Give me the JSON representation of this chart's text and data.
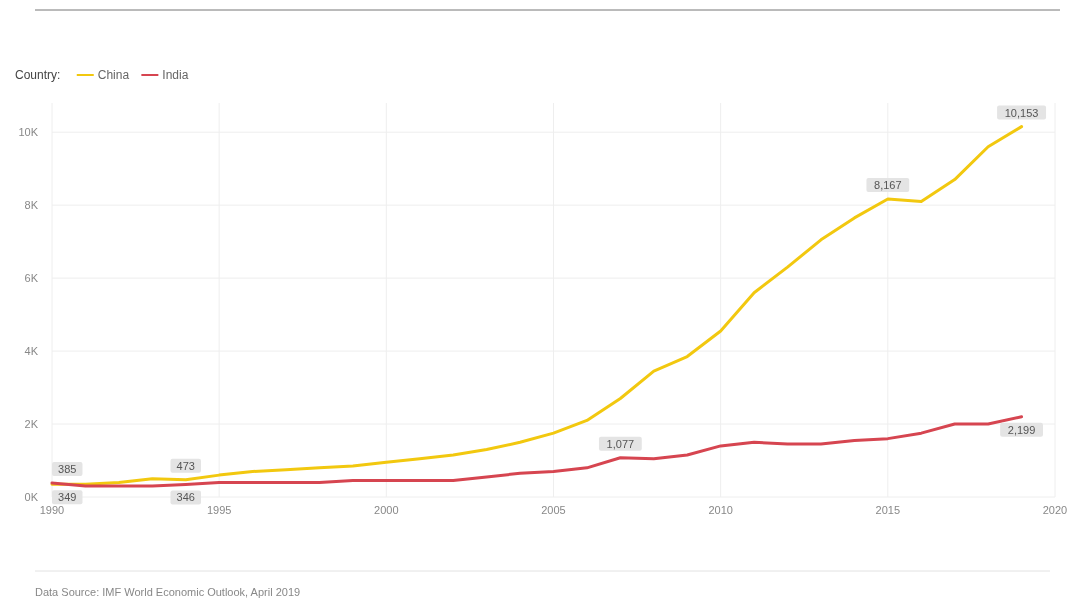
{
  "chart_data": {
    "type": "line",
    "title": null,
    "x": [
      1990,
      1991,
      1992,
      1993,
      1994,
      1995,
      1996,
      1997,
      1998,
      1999,
      2000,
      2001,
      2002,
      2003,
      2004,
      2005,
      2006,
      2007,
      2008,
      2009,
      2010,
      2011,
      2012,
      2013,
      2014,
      2015,
      2016,
      2017,
      2018,
      2019
    ],
    "xlim": [
      1990,
      2020
    ],
    "xticks": [
      1990,
      1995,
      2000,
      2005,
      2010,
      2015,
      2020
    ],
    "ylim": [
      0,
      10800
    ],
    "yticks": [
      {
        "value": 0,
        "label": "0K"
      },
      {
        "value": 2000,
        "label": "2K"
      },
      {
        "value": 4000,
        "label": "4K"
      },
      {
        "value": 6000,
        "label": "6K"
      },
      {
        "value": 8000,
        "label": "8K"
      },
      {
        "value": 10000,
        "label": "10K"
      }
    ],
    "grid": true,
    "legend": "top left",
    "legend_title": "Country:",
    "series": [
      {
        "name": "China",
        "color": "#f2c80f",
        "values": [
          349,
          350,
          400,
          500,
          473,
          600,
          700,
          750,
          800,
          850,
          950,
          1050,
          1150,
          1300,
          1500,
          1750,
          2100,
          2700,
          3450,
          3850,
          4550,
          5600,
          6300,
          7050,
          7650,
          8167,
          8100,
          8700,
          9600,
          10153
        ],
        "value_labels": [
          "349",
          null,
          null,
          null,
          "473",
          null,
          null,
          null,
          null,
          null,
          null,
          null,
          null,
          null,
          null,
          null,
          null,
          null,
          null,
          null,
          null,
          null,
          null,
          null,
          null,
          "8,167",
          null,
          null,
          null,
          "10,153"
        ]
      },
      {
        "name": "India",
        "color": "#d64550",
        "values": [
          385,
          300,
          300,
          300,
          346,
          400,
          400,
          400,
          400,
          450,
          450,
          450,
          450,
          550,
          650,
          700,
          800,
          1077,
          1050,
          1150,
          1400,
          1500,
          1450,
          1450,
          1550,
          1600,
          1750,
          2000,
          2000,
          2199
        ],
        "value_labels": [
          "385",
          null,
          null,
          null,
          "346",
          null,
          null,
          null,
          null,
          null,
          null,
          null,
          null,
          null,
          null,
          null,
          null,
          "1,077",
          null,
          null,
          null,
          null,
          null,
          null,
          null,
          null,
          null,
          null,
          null,
          "2,199"
        ]
      }
    ],
    "annotations": [
      "Data Source: IMF World Economic Outlook, April 2019"
    ]
  }
}
